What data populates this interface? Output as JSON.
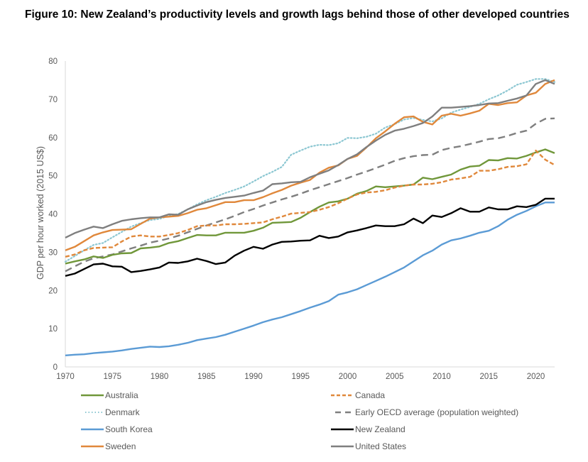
{
  "figure": {
    "title": "Figure 10: New Zealand’s productivity levels and growth lags behind those of other developed countries"
  },
  "chart_data": {
    "type": "line",
    "title": "Figure 10: New Zealand’s productivity levels and growth lags behind those of other developed countries",
    "xlabel": "",
    "ylabel": "GDP per hour worked (2015 US$)",
    "xlim": [
      1970,
      2022
    ],
    "ylim": [
      0,
      80
    ],
    "x_ticks": [
      "1970",
      "1975",
      "1980",
      "1985",
      "1990",
      "1995",
      "2000",
      "2005",
      "2010",
      "2015",
      "2020"
    ],
    "y_ticks": [
      "0",
      "10",
      "20",
      "30",
      "40",
      "50",
      "60",
      "70",
      "80"
    ],
    "grid": false,
    "legend_position": "bottom",
    "x": [
      1970,
      1971,
      1972,
      1973,
      1974,
      1975,
      1976,
      1977,
      1978,
      1979,
      1980,
      1981,
      1982,
      1983,
      1984,
      1985,
      1986,
      1987,
      1988,
      1989,
      1990,
      1991,
      1992,
      1993,
      1994,
      1995,
      1996,
      1997,
      1998,
      1999,
      2000,
      2001,
      2002,
      2003,
      2004,
      2005,
      2006,
      2007,
      2008,
      2009,
      2010,
      2011,
      2012,
      2013,
      2014,
      2015,
      2016,
      2017,
      2018,
      2019,
      2020,
      2021,
      2022
    ],
    "series": [
      {
        "name": "Australia",
        "color": "#70973a",
        "style": "solid",
        "values": [
          27.0,
          27.6,
          28.1,
          28.9,
          28.5,
          29.3,
          29.7,
          29.8,
          31.0,
          31.2,
          31.5,
          32.4,
          32.9,
          33.7,
          34.5,
          34.4,
          34.4,
          35.1,
          35.1,
          35.1,
          35.6,
          36.4,
          37.7,
          37.8,
          37.9,
          39.0,
          40.5,
          41.9,
          43.0,
          43.3,
          44.0,
          45.3,
          46.0,
          47.2,
          47.0,
          47.2,
          47.4,
          47.7,
          49.5,
          49.1,
          49.7,
          50.3,
          51.6,
          52.4,
          52.6,
          54.1,
          54.0,
          54.6,
          54.5,
          55.2,
          56.1,
          56.9,
          55.9
        ]
      },
      {
        "name": "Canada",
        "color": "#e0883b",
        "style": "dashed",
        "values": [
          28.8,
          29.4,
          30.5,
          31.1,
          31.2,
          31.3,
          32.8,
          34.1,
          34.4,
          34.1,
          34.1,
          34.5,
          35.0,
          35.8,
          36.8,
          37.0,
          37.0,
          37.3,
          37.3,
          37.4,
          37.6,
          37.8,
          38.6,
          39.3,
          40.1,
          40.3,
          40.5,
          41.1,
          41.8,
          42.8,
          44.0,
          45.1,
          45.6,
          45.8,
          46.2,
          46.9,
          47.4,
          47.7,
          47.7,
          47.9,
          48.3,
          49.0,
          49.3,
          49.7,
          51.3,
          51.3,
          51.7,
          52.3,
          52.5,
          53.0,
          56.6,
          54.2,
          52.8
        ]
      },
      {
        "name": "Denmark",
        "color": "#8cc7d2",
        "style": "dotted",
        "values": [
          27.5,
          29.0,
          30.5,
          31.9,
          32.4,
          33.9,
          35.3,
          36.7,
          37.6,
          38.4,
          38.7,
          39.5,
          40.0,
          41.2,
          42.5,
          43.6,
          44.5,
          45.5,
          46.3,
          47.2,
          48.5,
          49.9,
          51.0,
          52.3,
          55.5,
          56.6,
          57.6,
          58.1,
          58.0,
          58.5,
          59.9,
          59.8,
          60.2,
          61.0,
          62.6,
          63.5,
          64.7,
          65.1,
          64.6,
          64.2,
          65.0,
          66.5,
          67.3,
          68.0,
          68.8,
          70.0,
          71.0,
          72.3,
          73.8,
          74.5,
          75.3,
          75.3,
          74.5
        ]
      },
      {
        "name": "Early OECD average (population weighted)",
        "color": "#7f7f7f",
        "style": "longdash",
        "values": [
          25.0,
          26.3,
          27.5,
          28.4,
          28.9,
          29.4,
          30.2,
          31.0,
          31.7,
          32.5,
          33.0,
          33.6,
          34.3,
          35.2,
          36.1,
          37.0,
          37.8,
          38.6,
          39.5,
          40.5,
          41.3,
          42.2,
          43.0,
          43.8,
          44.5,
          45.3,
          46.2,
          47.0,
          47.8,
          48.6,
          49.4,
          50.3,
          51.1,
          52.0,
          52.9,
          53.9,
          54.6,
          55.1,
          55.4,
          55.5,
          56.7,
          57.3,
          57.7,
          58.3,
          58.9,
          59.6,
          59.8,
          60.4,
          61.2,
          61.8,
          63.6,
          64.9,
          65.0
        ]
      },
      {
        "name": "South Korea",
        "color": "#5b9bd5",
        "style": "solid",
        "values": [
          3.0,
          3.2,
          3.3,
          3.6,
          3.8,
          4.0,
          4.3,
          4.7,
          5.0,
          5.3,
          5.2,
          5.4,
          5.8,
          6.3,
          7.0,
          7.4,
          7.8,
          8.4,
          9.2,
          10.0,
          10.8,
          11.7,
          12.4,
          13.0,
          13.8,
          14.6,
          15.5,
          16.3,
          17.2,
          18.9,
          19.5,
          20.3,
          21.4,
          22.5,
          23.6,
          24.8,
          26.0,
          27.6,
          29.2,
          30.4,
          32.0,
          33.1,
          33.6,
          34.3,
          35.1,
          35.6,
          36.8,
          38.5,
          39.8,
          40.8,
          42.0,
          43.0,
          43.0
        ]
      },
      {
        "name": "New Zealand",
        "color": "#000000",
        "style": "solid",
        "values": [
          23.8,
          24.4,
          25.6,
          26.8,
          27.0,
          26.3,
          26.2,
          24.8,
          25.1,
          25.5,
          26.0,
          27.3,
          27.2,
          27.6,
          28.3,
          27.7,
          26.9,
          27.3,
          29.1,
          30.4,
          31.4,
          30.9,
          32.0,
          32.7,
          32.8,
          33.0,
          33.1,
          34.3,
          33.7,
          34.1,
          35.2,
          35.7,
          36.3,
          37.0,
          36.8,
          36.8,
          37.3,
          38.8,
          37.6,
          39.6,
          39.2,
          40.2,
          41.5,
          40.6,
          40.6,
          41.7,
          41.2,
          41.2,
          42.0,
          41.8,
          42.4,
          44.0,
          44.0
        ]
      },
      {
        "name": "Sweden",
        "color": "#e0883b",
        "style": "solid",
        "values": [
          30.5,
          31.4,
          32.9,
          34.4,
          35.2,
          35.8,
          35.9,
          36.0,
          37.4,
          38.8,
          39.1,
          39.3,
          39.5,
          40.2,
          41.1,
          41.5,
          42.3,
          43.1,
          43.1,
          43.6,
          43.6,
          44.4,
          45.4,
          46.3,
          47.4,
          48.2,
          48.9,
          50.8,
          52.1,
          52.7,
          54.4,
          55.2,
          57.4,
          59.8,
          61.6,
          63.6,
          65.3,
          65.5,
          64.1,
          63.4,
          65.7,
          66.2,
          65.7,
          66.3,
          67.0,
          68.8,
          68.5,
          69.0,
          69.2,
          71.0,
          71.7,
          74.0,
          75.0
        ]
      },
      {
        "name": "United States",
        "color": "#7f7f7f",
        "style": "solid",
        "values": [
          33.8,
          35.0,
          35.9,
          36.7,
          36.3,
          37.3,
          38.2,
          38.6,
          38.9,
          39.1,
          39.1,
          39.9,
          39.8,
          41.2,
          42.2,
          43.1,
          43.7,
          44.2,
          44.5,
          44.8,
          45.5,
          46.1,
          47.8,
          48.0,
          48.3,
          48.4,
          49.6,
          50.5,
          51.4,
          52.8,
          54.4,
          55.6,
          57.5,
          59.2,
          60.7,
          61.8,
          62.3,
          63.0,
          63.8,
          65.5,
          67.8,
          67.8,
          68.0,
          68.2,
          68.5,
          68.9,
          69.0,
          69.6,
          70.2,
          71.0,
          74.0,
          75.0,
          74.0
        ]
      }
    ]
  }
}
